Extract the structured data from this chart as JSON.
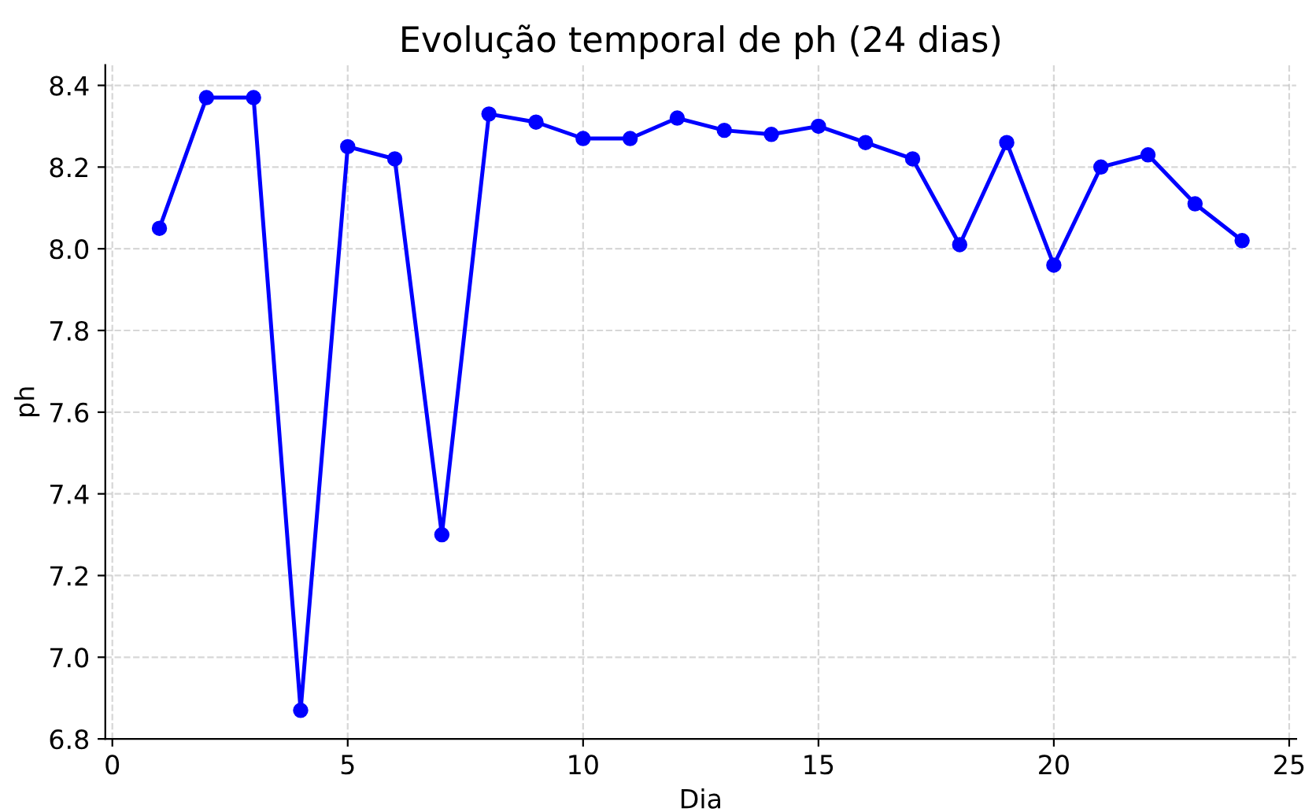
{
  "chart_data": {
    "type": "line",
    "title": "Evolução temporal de ph (24 dias)",
    "xlabel": "Dia",
    "ylabel": "ph",
    "x": [
      1,
      2,
      3,
      4,
      5,
      6,
      7,
      8,
      9,
      10,
      11,
      12,
      13,
      14,
      15,
      16,
      17,
      18,
      19,
      20,
      21,
      22,
      23,
      24
    ],
    "series": [
      {
        "color": "#0000ff",
        "values": [
          8.05,
          8.37,
          8.37,
          6.87,
          8.25,
          8.22,
          7.3,
          8.33,
          8.31,
          8.27,
          8.27,
          8.32,
          8.29,
          8.28,
          8.3,
          8.26,
          8.22,
          8.01,
          8.26,
          7.96,
          8.2,
          8.23,
          8.11,
          8.02
        ]
      }
    ],
    "xlim": [
      -0.15,
      25.15
    ],
    "ylim": [
      6.8,
      8.45
    ],
    "xticks": [
      0,
      5,
      10,
      15,
      20,
      25
    ],
    "yticks": [
      6.8,
      {
        "value": 7,
        "label": "7.0"
      },
      7.2,
      7.4,
      7.6,
      7.8,
      {
        "value": 8,
        "label": "8.0"
      },
      8.2,
      8.4
    ],
    "grid": true,
    "marker": "circle",
    "line_style": "solid",
    "legend": false
  }
}
